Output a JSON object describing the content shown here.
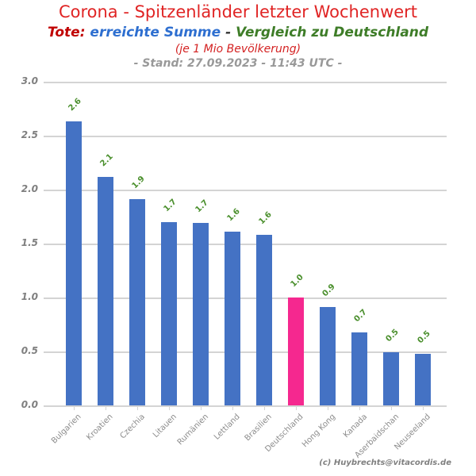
{
  "header": {
    "title": "Corona - Spitzenländer letzter Wochenwert",
    "subtitle": {
      "tote": "Tote:",
      "summe": " erreichte Summe",
      "dash": " - ",
      "vergleich": "Vergleich zu Deutschland"
    },
    "note": "(je 1 Mio Bevölkerung)",
    "stand": "- Stand: 27.09.2023 - 11:43 UTC -"
  },
  "footer": {
    "credit": "(c) Huybrechts@vitacordis.de"
  },
  "colors": {
    "title_red": "#e02424",
    "tote_red": "#c00000",
    "summe_blue": "#2e6fd0",
    "dash_dark": "#333333",
    "vergleich_green": "#3e7d28",
    "note_red": "#d42222",
    "stand_gray": "#999999",
    "bar_blue": "#4472c4",
    "bar_pink": "#f5288f",
    "value_green": "#4a8f2c",
    "grid_gray": "#d4d4d4",
    "ytick_gray": "#7f7f7f",
    "xtick_gray": "#8c8c8c",
    "footer_gray": "#808080"
  },
  "chart_data": {
    "type": "bar",
    "title": "Corona - Spitzenländer letzter Wochenwert",
    "subtitle": "Tote: erreichte Summe - Vergleich zu Deutschland (je 1 Mio Bevölkerung) - Stand: 27.09.2023 - 11:43 UTC -",
    "categories": [
      "Bulgarien",
      "Kroatien",
      "Czechia",
      "Litauen",
      "Rumänien",
      "Lettland",
      "Brasilien",
      "Deutschland",
      "Hong Kong",
      "Kanada",
      "Aserbaidschan",
      "Neuseeland"
    ],
    "values": [
      2.63,
      2.12,
      1.91,
      1.7,
      1.69,
      1.61,
      1.58,
      1.0,
      0.91,
      0.68,
      0.49,
      0.48
    ],
    "bar_labels": [
      "2.6",
      "2.1",
      "1.9",
      "1.7",
      "1.7",
      "1.6",
      "1.6",
      "1.0",
      "0.9",
      "0.7",
      "0.5",
      "0.5"
    ],
    "highlight_category": "Deutschland",
    "xlabel": "",
    "ylabel": "",
    "ylim": [
      0.0,
      3.0
    ],
    "yticks": [
      0.0,
      0.5,
      1.0,
      1.5,
      2.0,
      2.5,
      3.0
    ],
    "grid": true,
    "legend": false
  }
}
